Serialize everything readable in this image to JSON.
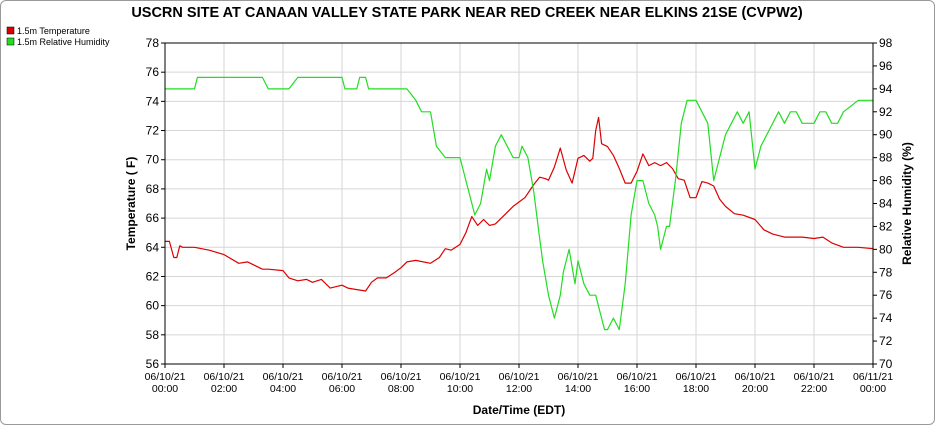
{
  "chart_data": {
    "type": "line",
    "title": "USCRN SITE AT CANAAN VALLEY STATE PARK NEAR RED CREEK NEAR ELKINS 21SE (CVPW2)",
    "xlabel": "Date/Time (EDT)",
    "ylabel_left": "Temperature ( F)",
    "ylabel_right": "Relative Humidity (%)",
    "x_range": [
      0,
      24
    ],
    "ylim_left": [
      56,
      78
    ],
    "ylim_right": [
      70,
      98
    ],
    "yticks_left": [
      "56",
      "58",
      "60",
      "62",
      "64",
      "66",
      "68",
      "70",
      "72",
      "74",
      "76",
      "78"
    ],
    "yticks_right": [
      "70",
      "72",
      "74",
      "76",
      "78",
      "80",
      "82",
      "84",
      "86",
      "88",
      "90",
      "92",
      "94",
      "96",
      "98"
    ],
    "xticks": [
      {
        "date": "06/10/21",
        "time": "00:00"
      },
      {
        "date": "06/10/21",
        "time": "02:00"
      },
      {
        "date": "06/10/21",
        "time": "04:00"
      },
      {
        "date": "06/10/21",
        "time": "06:00"
      },
      {
        "date": "06/10/21",
        "time": "08:00"
      },
      {
        "date": "06/10/21",
        "time": "10:00"
      },
      {
        "date": "06/10/21",
        "time": "12:00"
      },
      {
        "date": "06/10/21",
        "time": "14:00"
      },
      {
        "date": "06/10/21",
        "time": "16:00"
      },
      {
        "date": "06/10/21",
        "time": "18:00"
      },
      {
        "date": "06/10/21",
        "time": "20:00"
      },
      {
        "date": "06/10/21",
        "time": "22:00"
      },
      {
        "date": "06/11/21",
        "time": "00:00"
      }
    ],
    "grid": true,
    "legend_position": "top-left",
    "series": [
      {
        "name": "1.5m Temperature",
        "axis": "left",
        "color": "#dd0000",
        "x": [
          0,
          0.15,
          0.3,
          0.4,
          0.5,
          0.6,
          0.8,
          1.0,
          1.5,
          2.0,
          2.5,
          2.8,
          3.0,
          3.3,
          3.5,
          4.0,
          4.2,
          4.5,
          4.8,
          5.0,
          5.3,
          5.6,
          6.0,
          6.2,
          6.5,
          6.8,
          7.0,
          7.2,
          7.5,
          7.8,
          8.0,
          8.2,
          8.5,
          9.0,
          9.3,
          9.5,
          9.7,
          10.0,
          10.2,
          10.4,
          10.6,
          10.8,
          11.0,
          11.2,
          11.5,
          11.8,
          12.0,
          12.2,
          12.5,
          12.7,
          12.9,
          13.0,
          13.2,
          13.4,
          13.6,
          13.8,
          14.0,
          14.2,
          14.4,
          14.5,
          14.6,
          14.7,
          14.8,
          15.0,
          15.2,
          15.4,
          15.6,
          15.8,
          16.0,
          16.2,
          16.4,
          16.6,
          16.8,
          17.0,
          17.2,
          17.4,
          17.6,
          17.8,
          18.0,
          18.2,
          18.4,
          18.6,
          18.8,
          19.0,
          19.3,
          19.6,
          20.0,
          20.3,
          20.6,
          21.0,
          21.3,
          21.6,
          22.0,
          22.3,
          22.6,
          23.0,
          23.5,
          24.0
        ],
        "y": [
          64.4,
          64.4,
          63.3,
          63.3,
          64.1,
          64.0,
          64.0,
          64.0,
          63.8,
          63.5,
          62.9,
          63.0,
          62.8,
          62.5,
          62.5,
          62.4,
          61.9,
          61.7,
          61.8,
          61.6,
          61.8,
          61.2,
          61.4,
          61.2,
          61.1,
          61.0,
          61.6,
          61.9,
          61.9,
          62.3,
          62.6,
          63.0,
          63.1,
          62.9,
          63.3,
          63.9,
          63.8,
          64.2,
          65.0,
          66.1,
          65.5,
          65.9,
          65.5,
          65.6,
          66.2,
          66.8,
          67.1,
          67.4,
          68.3,
          68.8,
          68.7,
          68.6,
          69.5,
          70.8,
          69.3,
          68.4,
          70.1,
          70.3,
          69.9,
          70.1,
          72.0,
          72.9,
          71.1,
          70.9,
          70.3,
          69.4,
          68.4,
          68.4,
          69.2,
          70.4,
          69.6,
          69.8,
          69.6,
          69.8,
          69.4,
          68.7,
          68.6,
          67.4,
          67.4,
          68.5,
          68.4,
          68.2,
          67.3,
          66.8,
          66.3,
          66.2,
          65.9,
          65.2,
          64.9,
          64.7,
          64.7,
          64.7,
          64.6,
          64.7,
          64.3,
          64.0,
          64.0,
          63.9
        ]
      },
      {
        "name": "1.5m Relative Humidity",
        "axis": "right",
        "color": "#22dd22",
        "x": [
          0,
          0.5,
          1.0,
          1.1,
          1.3,
          2.0,
          2.5,
          3.0,
          3.3,
          3.5,
          4.0,
          4.2,
          4.5,
          5.0,
          5.5,
          6.0,
          6.1,
          6.5,
          6.6,
          6.8,
          6.9,
          7.0,
          7.5,
          8.0,
          8.2,
          8.5,
          8.7,
          9.0,
          9.2,
          9.5,
          9.7,
          10.0,
          10.2,
          10.3,
          10.5,
          10.7,
          10.9,
          11.0,
          11.2,
          11.4,
          11.6,
          11.8,
          12.0,
          12.1,
          12.3,
          12.5,
          12.7,
          12.8,
          13.0,
          13.2,
          13.4,
          13.5,
          13.7,
          13.9,
          14.0,
          14.2,
          14.4,
          14.6,
          14.7,
          14.8,
          14.9,
          15.0,
          15.2,
          15.4,
          15.6,
          15.8,
          16.0,
          16.2,
          16.4,
          16.6,
          16.7,
          16.8,
          17.0,
          17.1,
          17.3,
          17.5,
          17.7,
          17.9,
          18.0,
          18.2,
          18.4,
          18.6,
          18.8,
          19.0,
          19.2,
          19.4,
          19.6,
          19.8,
          20.0,
          20.2,
          20.4,
          20.6,
          20.8,
          21.0,
          21.2,
          21.4,
          21.6,
          21.8,
          22.0,
          22.2,
          22.4,
          22.6,
          22.8,
          23.0,
          23.5,
          24.0
        ],
        "y": [
          94,
          94,
          94,
          95,
          95,
          95,
          95,
          95,
          95,
          94,
          94,
          94,
          95,
          95,
          95,
          95,
          94,
          94,
          95,
          95,
          94,
          94,
          94,
          94,
          94,
          93,
          92,
          92,
          89,
          88,
          88,
          88,
          86,
          85,
          83,
          84,
          87,
          86,
          89,
          90,
          89,
          88,
          88,
          89,
          88,
          85,
          81,
          79,
          76,
          74,
          76,
          78,
          80,
          77,
          79,
          77,
          76,
          76,
          75,
          74,
          73,
          73,
          74,
          73,
          77,
          83,
          86,
          86,
          84,
          83,
          82,
          80,
          82,
          82,
          86,
          91,
          93,
          93,
          93,
          92,
          91,
          86,
          88,
          90,
          91,
          92,
          91,
          92,
          87,
          89,
          90,
          91,
          92,
          91,
          92,
          92,
          91,
          91,
          91,
          92,
          92,
          91,
          91,
          92,
          93,
          93
        ]
      }
    ]
  }
}
